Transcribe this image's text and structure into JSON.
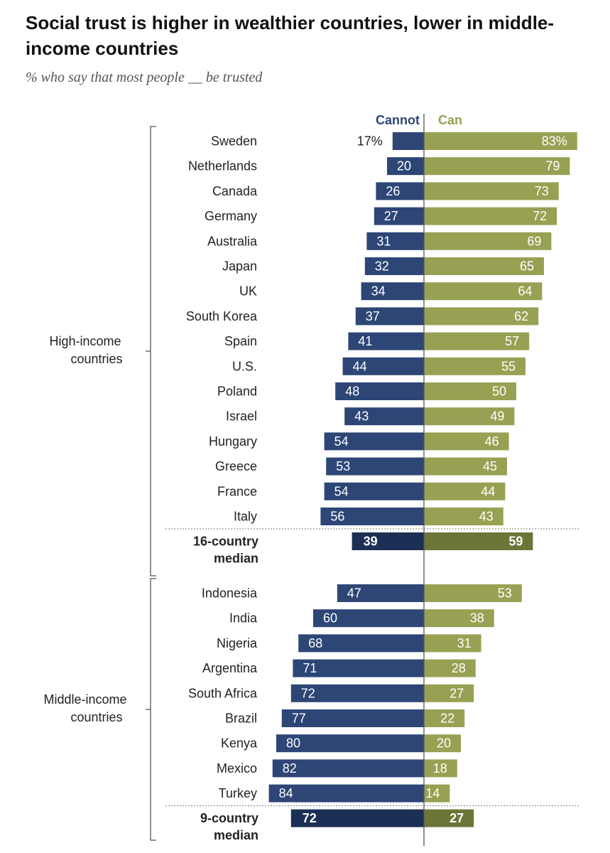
{
  "title": "Social trust is higher in wealthier countries, lower in middle-income countries",
  "subtitle": "% who say that most people __ be trusted",
  "colors": {
    "cannot": "#2d4676",
    "can": "#98a153",
    "cannot_median": "#1c2f55",
    "can_median": "#6c7438",
    "text": "#222222",
    "bracket": "#555555"
  },
  "chart_data": {
    "type": "bar",
    "orientation": "horizontal-diverging",
    "title": "Social trust is higher in wealthier countries, lower in middle-income countries",
    "subtitle": "% who say that most people __ be trusted",
    "series_names": {
      "cannot": "Cannot",
      "can": "Can"
    },
    "unit_suffix_first_row": "%",
    "groups": [
      {
        "name": "High-income countries",
        "label_lines": [
          "High-income",
          "countries"
        ],
        "rows": [
          {
            "country": "Sweden",
            "cannot": 17,
            "can": 83
          },
          {
            "country": "Netherlands",
            "cannot": 20,
            "can": 79
          },
          {
            "country": "Canada",
            "cannot": 26,
            "can": 73
          },
          {
            "country": "Germany",
            "cannot": 27,
            "can": 72
          },
          {
            "country": "Australia",
            "cannot": 31,
            "can": 69
          },
          {
            "country": "Japan",
            "cannot": 32,
            "can": 65
          },
          {
            "country": "UK",
            "cannot": 34,
            "can": 64
          },
          {
            "country": "South Korea",
            "cannot": 37,
            "can": 62
          },
          {
            "country": "Spain",
            "cannot": 41,
            "can": 57
          },
          {
            "country": "U.S.",
            "cannot": 44,
            "can": 55
          },
          {
            "country": "Poland",
            "cannot": 48,
            "can": 50
          },
          {
            "country": "Israel",
            "cannot": 43,
            "can": 49
          },
          {
            "country": "Hungary",
            "cannot": 54,
            "can": 46
          },
          {
            "country": "Greece",
            "cannot": 53,
            "can": 45
          },
          {
            "country": "France",
            "cannot": 54,
            "can": 44
          },
          {
            "country": "Italy",
            "cannot": 56,
            "can": 43
          }
        ],
        "median": {
          "label_lines": [
            "16-country",
            "median"
          ],
          "cannot": 39,
          "can": 59
        }
      },
      {
        "name": "Middle-income countries",
        "label_lines": [
          "Middle-income",
          "countries"
        ],
        "rows": [
          {
            "country": "Indonesia",
            "cannot": 47,
            "can": 53
          },
          {
            "country": "India",
            "cannot": 60,
            "can": 38
          },
          {
            "country": "Nigeria",
            "cannot": 68,
            "can": 31
          },
          {
            "country": "Argentina",
            "cannot": 71,
            "can": 28
          },
          {
            "country": "South Africa",
            "cannot": 72,
            "can": 27
          },
          {
            "country": "Brazil",
            "cannot": 77,
            "can": 22
          },
          {
            "country": "Kenya",
            "cannot": 80,
            "can": 20
          },
          {
            "country": "Mexico",
            "cannot": 82,
            "can": 18
          },
          {
            "country": "Turkey",
            "cannot": 84,
            "can": 14
          }
        ],
        "median": {
          "label_lines": [
            "9-country",
            "median"
          ],
          "cannot": 72,
          "can": 27
        }
      }
    ]
  }
}
